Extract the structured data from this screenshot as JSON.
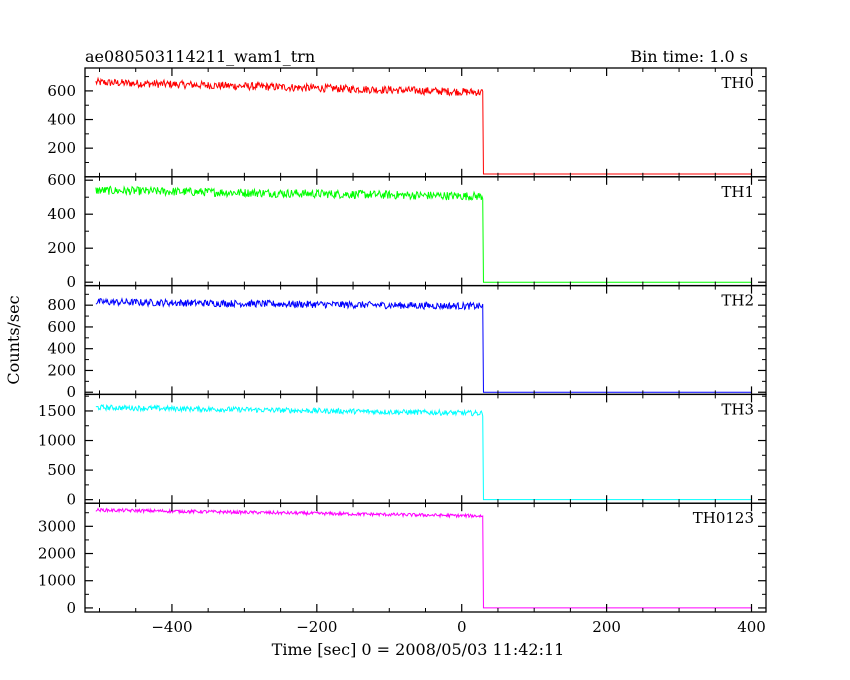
{
  "chart_data": {
    "type": "line",
    "title": "ae080503114211_wam1_trn",
    "subtitle": "Bin time: 1.0 s",
    "xlabel": "Time [sec] 0 = 2008/05/03 11:42:11",
    "ylabel": "Counts/sec",
    "xlim": [
      -520,
      420
    ],
    "x_ticks": [
      -400,
      -200,
      0,
      200,
      400
    ],
    "grid": false,
    "step_time": 30,
    "bin": 1,
    "x_start": -505,
    "x_end": 400,
    "panels": [
      {
        "name": "TH0",
        "color": "#ff0000",
        "ylim": [
          0,
          760
        ],
        "y_ticks": [
          200,
          400,
          600
        ],
        "before_start": 660,
        "before_end": 590,
        "noise": 55,
        "after": 20
      },
      {
        "name": "TH1",
        "color": "#00ff00",
        "ylim": [
          -20,
          620
        ],
        "y_ticks": [
          0,
          200,
          400,
          600
        ],
        "before_start": 540,
        "before_end": 505,
        "noise": 50,
        "after": 0
      },
      {
        "name": "TH2",
        "color": "#0000ff",
        "ylim": [
          -20,
          980
        ],
        "y_ticks": [
          0,
          200,
          400,
          600,
          800
        ],
        "before_start": 830,
        "before_end": 790,
        "noise": 65,
        "after": 0
      },
      {
        "name": "TH3",
        "color": "#00ffff",
        "ylim": [
          -60,
          1780
        ],
        "y_ticks": [
          0,
          500,
          1000,
          1500
        ],
        "before_start": 1560,
        "before_end": 1460,
        "noise": 90,
        "after": 0
      },
      {
        "name": "TH0123",
        "color": "#ff00ff",
        "ylim": [
          -150,
          3850
        ],
        "y_ticks": [
          0,
          1000,
          2000,
          3000
        ],
        "before_start": 3600,
        "before_end": 3380,
        "noise": 120,
        "after": 0
      }
    ]
  }
}
